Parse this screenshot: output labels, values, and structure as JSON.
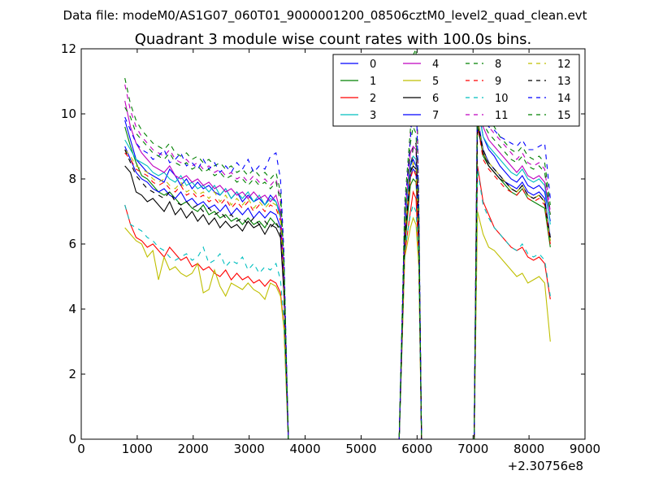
{
  "figure": {
    "suptitle": "Data file: modeM0/AS1G07_060T01_9000001200_08506cztM0_level2_quad_clean.evt",
    "title": "Quadrant 3 module wise count rates with 100.0s bins.",
    "x_offset_label": "+2.30756e8"
  },
  "chart_data": {
    "type": "line",
    "title": "Quadrant 3 module wise count rates with 100.0s bins.",
    "xlabel": "",
    "ylabel": "",
    "x_offset": 230756000,
    "xlim": [
      0,
      9000
    ],
    "ylim": [
      0,
      12
    ],
    "xticks": [
      0,
      1000,
      2000,
      3000,
      4000,
      5000,
      6000,
      7000,
      8000,
      9000
    ],
    "yticks": [
      0,
      2,
      4,
      6,
      8,
      10,
      12
    ],
    "grid": false,
    "legend_position": "upper-right",
    "legend_columns": 4,
    "x": [
      780,
      880,
      980,
      1080,
      1180,
      1280,
      1380,
      1480,
      1580,
      1680,
      1780,
      1880,
      1980,
      2080,
      2180,
      2280,
      2380,
      2480,
      2580,
      2680,
      2780,
      2880,
      2980,
      3080,
      3180,
      3280,
      3380,
      3480,
      3560,
      3620,
      3700,
      5680,
      5780,
      5880,
      5930,
      5980,
      6030,
      6080,
      7020,
      7080,
      7180,
      7280,
      7380,
      7480,
      7580,
      7680,
      7780,
      7880,
      7980,
      8080,
      8180,
      8280,
      8380
    ],
    "series": [
      {
        "name": "0",
        "color": "#0000ff",
        "dash": "solid",
        "values": [
          9.8,
          9.2,
          8.6,
          8.4,
          8.2,
          8.1,
          8.0,
          7.9,
          8.3,
          8.1,
          7.8,
          8.0,
          7.7,
          7.9,
          7.7,
          7.8,
          7.6,
          7.5,
          7.7,
          7.4,
          7.6,
          7.3,
          7.5,
          7.3,
          7.4,
          7.2,
          7.5,
          7.3,
          6.9,
          5.0,
          0,
          0,
          6.5,
          8.4,
          8.6,
          8.4,
          6.6,
          0,
          0,
          10.3,
          9.3,
          8.9,
          8.7,
          8.4,
          8.2,
          8.0,
          7.9,
          8.1,
          7.8,
          7.7,
          7.8,
          7.6,
          6.7
        ]
      },
      {
        "name": "1",
        "color": "#008000",
        "dash": "solid",
        "values": [
          9.6,
          9.0,
          8.5,
          8.1,
          8.0,
          7.8,
          7.6,
          7.5,
          7.6,
          7.4,
          7.2,
          7.3,
          7.1,
          7.0,
          7.2,
          6.9,
          7.0,
          6.8,
          6.9,
          6.7,
          6.8,
          6.6,
          6.8,
          6.6,
          6.7,
          6.5,
          6.8,
          6.6,
          6.5,
          4.7,
          0,
          0,
          5.9,
          7.8,
          8.0,
          7.9,
          6.2,
          0,
          0,
          9.8,
          8.7,
          8.4,
          8.2,
          8.0,
          7.8,
          7.6,
          7.5,
          7.7,
          7.4,
          7.3,
          7.2,
          7.1,
          5.9
        ]
      },
      {
        "name": "2",
        "color": "#ff0000",
        "dash": "solid",
        "values": [
          7.2,
          6.6,
          6.2,
          6.1,
          5.9,
          6.0,
          5.8,
          5.6,
          5.9,
          5.7,
          5.5,
          5.6,
          5.3,
          5.4,
          5.2,
          5.3,
          5.1,
          5.0,
          5.2,
          4.9,
          5.1,
          4.9,
          5.0,
          4.8,
          4.9,
          4.7,
          4.9,
          4.8,
          4.5,
          3.5,
          0,
          0,
          5.7,
          7.0,
          7.6,
          7.4,
          5.6,
          0,
          0,
          8.4,
          7.3,
          6.9,
          6.5,
          6.3,
          6.1,
          5.9,
          5.8,
          5.9,
          5.6,
          5.5,
          5.6,
          5.4,
          4.3
        ]
      },
      {
        "name": "3",
        "color": "#00bfbf",
        "dash": "solid",
        "values": [
          9.2,
          8.9,
          8.6,
          8.5,
          8.4,
          8.2,
          8.1,
          8.2,
          8.0,
          7.9,
          8.1,
          7.8,
          7.9,
          7.7,
          7.8,
          7.6,
          7.8,
          7.5,
          7.7,
          7.4,
          7.6,
          7.4,
          7.6,
          7.3,
          7.5,
          7.2,
          7.4,
          7.3,
          6.8,
          5.0,
          0,
          0,
          6.6,
          8.5,
          8.7,
          8.6,
          6.8,
          0,
          0,
          10.4,
          9.3,
          9.0,
          8.8,
          8.6,
          8.4,
          8.2,
          8.1,
          8.3,
          8.0,
          7.9,
          8.0,
          7.8,
          6.6
        ]
      },
      {
        "name": "4",
        "color": "#bf00bf",
        "dash": "solid",
        "values": [
          10.4,
          9.6,
          9.1,
          8.8,
          8.6,
          8.4,
          8.3,
          8.2,
          8.4,
          8.1,
          8.0,
          8.1,
          7.9,
          8.0,
          7.8,
          7.9,
          7.7,
          7.8,
          7.6,
          7.7,
          7.5,
          7.6,
          7.4,
          7.6,
          7.4,
          7.5,
          7.3,
          7.5,
          7.0,
          5.2,
          0,
          0,
          6.8,
          8.8,
          9.0,
          8.9,
          6.9,
          0,
          0,
          10.8,
          9.6,
          9.2,
          9.0,
          8.8,
          8.6,
          8.4,
          8.2,
          8.4,
          8.1,
          8.0,
          8.1,
          7.9,
          6.9
        ]
      },
      {
        "name": "5",
        "color": "#bfbf00",
        "dash": "solid",
        "values": [
          6.5,
          6.3,
          6.1,
          6.0,
          5.6,
          5.8,
          4.9,
          5.6,
          5.2,
          5.3,
          5.1,
          5.0,
          5.1,
          5.4,
          4.5,
          4.6,
          5.2,
          4.7,
          4.4,
          4.8,
          4.7,
          4.6,
          4.8,
          4.6,
          4.5,
          4.3,
          4.8,
          4.7,
          4.4,
          3.4,
          0,
          0,
          5.6,
          6.5,
          6.8,
          6.6,
          5.3,
          0,
          0,
          7.0,
          6.3,
          5.9,
          5.8,
          5.6,
          5.4,
          5.2,
          5.0,
          5.1,
          4.8,
          4.9,
          5.0,
          4.8,
          3.0
        ]
      },
      {
        "name": "6",
        "color": "#000000",
        "dash": "solid",
        "values": [
          8.4,
          8.2,
          7.6,
          7.5,
          7.3,
          7.4,
          7.2,
          7.0,
          7.3,
          6.9,
          7.1,
          6.8,
          7.0,
          6.7,
          6.9,
          6.6,
          6.8,
          6.5,
          6.7,
          6.5,
          6.6,
          6.4,
          6.7,
          6.5,
          6.6,
          6.3,
          6.6,
          6.5,
          6.2,
          4.5,
          0,
          0,
          6.1,
          8.2,
          8.4,
          8.3,
          6.4,
          0,
          0,
          9.6,
          8.8,
          8.4,
          8.2,
          8.0,
          7.9,
          7.7,
          7.6,
          7.8,
          7.5,
          7.4,
          7.5,
          7.3,
          6.1
        ]
      },
      {
        "name": "7",
        "color": "#0000ff",
        "dash": "solid",
        "values": [
          9.0,
          8.6,
          8.2,
          8.0,
          7.9,
          7.7,
          7.6,
          7.7,
          7.5,
          7.4,
          7.6,
          7.3,
          7.4,
          7.2,
          7.3,
          7.1,
          7.2,
          7.0,
          7.2,
          6.9,
          7.1,
          6.9,
          7.1,
          6.8,
          7.0,
          6.8,
          7.0,
          6.9,
          6.5,
          4.8,
          0,
          0,
          6.3,
          8.1,
          8.3,
          8.2,
          6.4,
          0,
          0,
          9.9,
          8.9,
          8.5,
          8.3,
          8.1,
          7.9,
          7.8,
          7.7,
          7.9,
          7.6,
          7.5,
          7.6,
          7.4,
          6.2
        ]
      },
      {
        "name": "8",
        "color": "#008000",
        "dash": "dashed",
        "values": [
          11.1,
          10.3,
          9.8,
          9.5,
          9.3,
          9.1,
          9.0,
          8.9,
          9.1,
          8.8,
          8.7,
          8.8,
          8.6,
          8.7,
          8.5,
          8.6,
          8.4,
          8.5,
          8.3,
          8.4,
          8.2,
          8.3,
          8.1,
          8.3,
          8.1,
          8.2,
          8.0,
          8.2,
          7.6,
          5.6,
          0,
          0,
          7.3,
          9.5,
          11.8,
          12.0,
          7.4,
          0,
          0,
          11.2,
          10.2,
          9.8,
          9.6,
          9.3,
          9.1,
          8.9,
          8.8,
          9.0,
          8.7,
          8.6,
          8.7,
          8.5,
          7.2
        ]
      },
      {
        "name": "9",
        "color": "#ff0000",
        "dash": "dashed",
        "values": [
          8.8,
          8.6,
          8.3,
          8.2,
          8.1,
          7.9,
          7.8,
          7.9,
          7.7,
          7.6,
          7.8,
          7.5,
          7.6,
          7.4,
          7.5,
          7.3,
          7.4,
          7.2,
          7.4,
          7.1,
          7.3,
          7.1,
          7.3,
          7.0,
          7.2,
          7.0,
          7.2,
          7.1,
          6.7,
          4.9,
          0,
          0,
          6.2,
          8.0,
          8.3,
          8.1,
          6.3,
          0,
          0,
          9.7,
          8.6,
          8.3,
          8.1,
          7.9,
          7.7,
          7.6,
          7.5,
          7.7,
          7.4,
          7.3,
          7.4,
          7.2,
          6.0
        ]
      },
      {
        "name": "10",
        "color": "#00bfbf",
        "dash": "dashed",
        "values": [
          7.2,
          6.6,
          6.5,
          6.4,
          6.2,
          6.1,
          5.9,
          5.8,
          5.6,
          5.5,
          5.6,
          5.7,
          5.5,
          5.6,
          5.9,
          5.4,
          5.5,
          5.7,
          5.3,
          5.5,
          5.4,
          5.6,
          5.2,
          5.4,
          5.1,
          5.3,
          5.2,
          5.4,
          4.9,
          3.7,
          0,
          0,
          5.8,
          6.9,
          7.2,
          7.0,
          5.6,
          0,
          0,
          8.3,
          7.2,
          6.8,
          6.5,
          6.3,
          6.1,
          5.9,
          5.8,
          6.0,
          5.7,
          5.6,
          5.7,
          5.5,
          4.4
        ]
      },
      {
        "name": "11",
        "color": "#bf00bf",
        "dash": "dashed",
        "values": [
          10.9,
          10.1,
          9.6,
          9.3,
          9.1,
          8.9,
          8.8,
          8.7,
          8.9,
          8.6,
          8.5,
          8.6,
          8.4,
          8.5,
          8.3,
          8.4,
          8.2,
          8.3,
          8.1,
          8.2,
          8.0,
          8.1,
          7.9,
          8.1,
          7.9,
          8.0,
          7.8,
          8.0,
          7.4,
          5.5,
          0,
          0,
          7.1,
          9.3,
          11.1,
          11.2,
          7.2,
          0,
          0,
          11.0,
          10.0,
          9.6,
          9.4,
          9.2,
          9.0,
          8.8,
          8.6,
          8.8,
          8.5,
          8.4,
          8.5,
          8.3,
          7.0
        ]
      },
      {
        "name": "12",
        "color": "#bfbf00",
        "dash": "dashed",
        "values": [
          8.9,
          8.7,
          8.4,
          8.3,
          8.2,
          8.0,
          7.9,
          8.0,
          7.8,
          7.7,
          7.9,
          7.6,
          7.7,
          7.5,
          7.6,
          7.4,
          7.6,
          7.3,
          7.5,
          7.2,
          7.4,
          7.2,
          7.4,
          7.1,
          7.3,
          7.1,
          7.3,
          7.2,
          6.8,
          5.0,
          0,
          0,
          6.4,
          8.2,
          8.5,
          8.3,
          6.5,
          0,
          0,
          9.9,
          8.8,
          8.5,
          8.3,
          8.1,
          7.9,
          7.7,
          7.6,
          7.8,
          7.5,
          7.4,
          7.5,
          7.3,
          6.1
        ]
      },
      {
        "name": "13",
        "color": "#000000",
        "dash": "dashed",
        "values": [
          8.9,
          8.5,
          8.1,
          7.9,
          7.7,
          7.6,
          7.5,
          7.4,
          7.6,
          7.3,
          7.2,
          7.3,
          7.1,
          7.2,
          7.0,
          7.1,
          6.9,
          7.0,
          6.8,
          6.9,
          6.7,
          6.8,
          6.6,
          6.8,
          6.6,
          6.7,
          6.5,
          6.7,
          6.3,
          4.6,
          0,
          0,
          6.2,
          8.1,
          9.0,
          9.1,
          6.4,
          0,
          0,
          9.7,
          8.9,
          8.5,
          8.3,
          8.1,
          7.9,
          7.7,
          7.6,
          7.8,
          7.5,
          7.4,
          7.5,
          7.3,
          6.2
        ]
      },
      {
        "name": "14",
        "color": "#0000ff",
        "dash": "dashed",
        "values": [
          9.9,
          9.5,
          9.1,
          8.9,
          8.8,
          8.6,
          8.7,
          8.9,
          8.5,
          8.6,
          8.8,
          8.4,
          8.5,
          8.3,
          8.6,
          8.3,
          8.5,
          8.2,
          8.4,
          8.2,
          8.5,
          8.3,
          8.6,
          8.2,
          8.4,
          8.3,
          8.7,
          8.8,
          8.0,
          5.8,
          0,
          0,
          7.0,
          9.2,
          10.5,
          10.8,
          7.3,
          0,
          0,
          10.9,
          9.9,
          9.6,
          9.5,
          9.3,
          9.2,
          9.1,
          9.0,
          9.2,
          8.9,
          8.9,
          9.0,
          9.1,
          7.4
        ]
      },
      {
        "name": "15",
        "color": "#008000",
        "dash": "dashed",
        "values": [
          10.2,
          9.9,
          9.4,
          9.2,
          9.0,
          8.8,
          8.7,
          8.6,
          8.8,
          8.5,
          8.4,
          8.5,
          8.3,
          8.4,
          8.2,
          8.3,
          8.1,
          8.2,
          8.0,
          8.1,
          7.9,
          8.0,
          7.8,
          8.0,
          7.8,
          7.9,
          7.7,
          7.9,
          7.3,
          5.4,
          0,
          0,
          6.9,
          9.1,
          9.6,
          9.4,
          7.0,
          0,
          0,
          10.7,
          9.7,
          9.4,
          9.2,
          9.0,
          8.8,
          8.6,
          8.5,
          8.7,
          8.4,
          8.3,
          8.4,
          8.2,
          6.9
        ]
      }
    ]
  }
}
